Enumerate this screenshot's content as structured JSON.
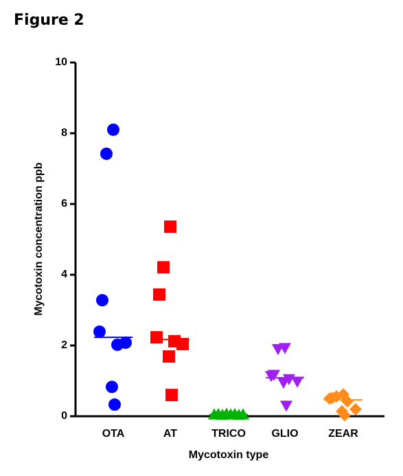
{
  "figure_label": "Figure 2",
  "chart_data": {
    "type": "dot",
    "xlabel": "Mycotoxin type",
    "ylabel": "Mycotoxin concentration ppb",
    "ylim": [
      0,
      10
    ],
    "yticks": [
      0,
      2,
      4,
      6,
      8,
      10
    ],
    "series": [
      {
        "name": "OTA",
        "color": "#0000ff",
        "marker": "circle",
        "values": [
          8.1,
          7.42,
          3.28,
          2.39,
          2.02,
          2.08,
          0.83,
          0.33
        ],
        "median": 2.23
      },
      {
        "name": "AT",
        "color": "#ff0000",
        "marker": "square",
        "values": [
          5.36,
          4.21,
          3.44,
          2.23,
          2.12,
          2.04,
          1.69,
          0.6
        ],
        "median": 2.17
      },
      {
        "name": "TRICO",
        "color": "#00b300",
        "marker": "triangle-up",
        "values": [
          0.05,
          0.06,
          0.04,
          0.07,
          0.05,
          0.06,
          0.04,
          0.05
        ],
        "median": 0.05
      },
      {
        "name": "GLIO",
        "color": "#a020f0",
        "marker": "triangle-down",
        "values": [
          1.93,
          1.9,
          1.17,
          1.14,
          1.05,
          0.98,
          0.95,
          0.3
        ],
        "median": 1.09
      },
      {
        "name": "ZEAR",
        "color": "#ff8c1a",
        "marker": "diamond",
        "values": [
          0.62,
          0.56,
          0.52,
          0.5,
          0.42,
          0.2,
          0.14,
          0.03
        ],
        "median": 0.46
      }
    ]
  }
}
